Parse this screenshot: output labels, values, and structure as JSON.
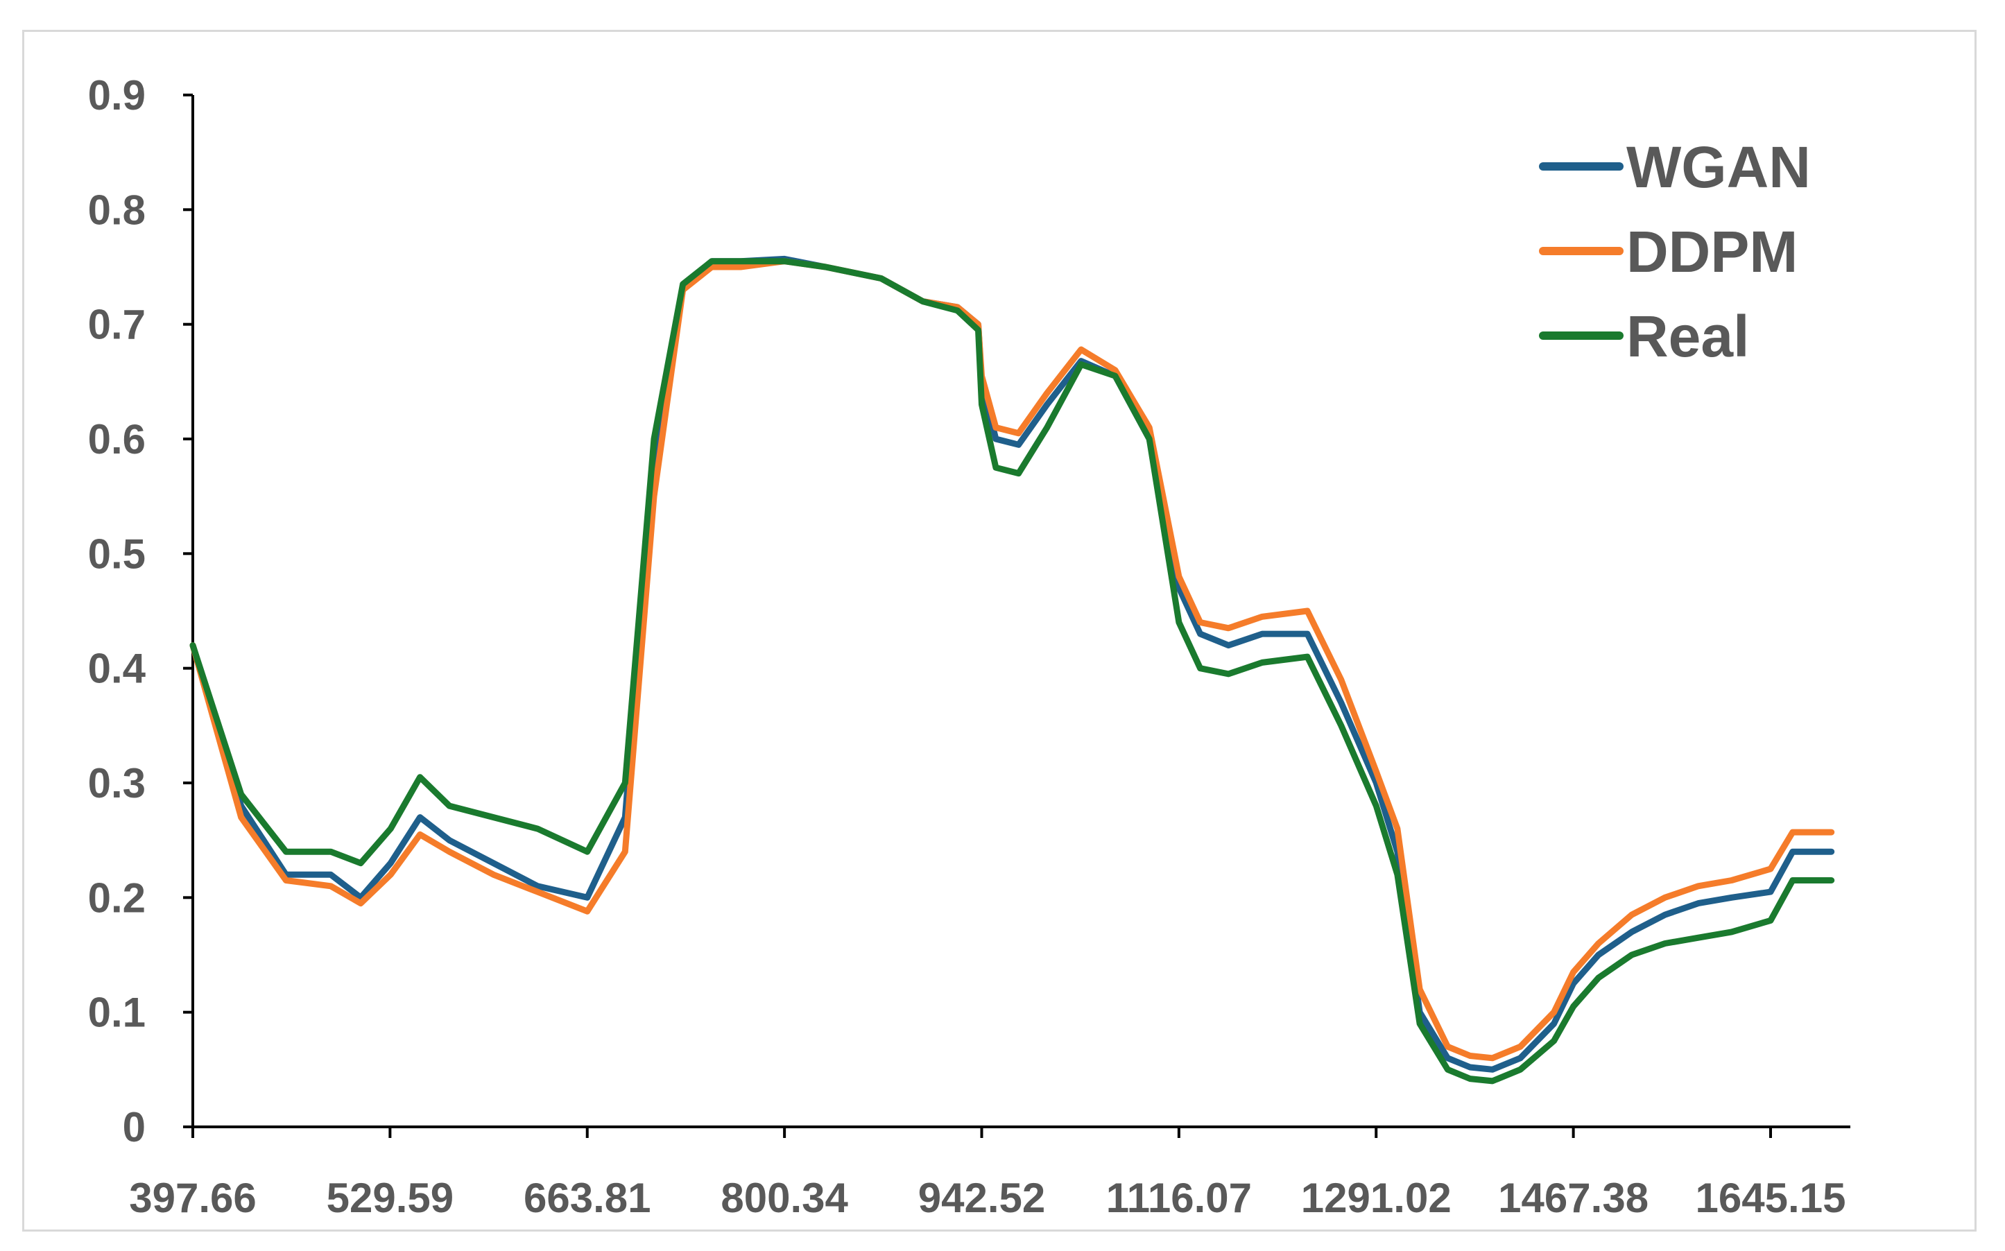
{
  "chart_data": {
    "type": "line",
    "title": "",
    "xlabel": "",
    "ylabel": "",
    "x_tick_labels": [
      "397.66",
      "529.59",
      "663.81",
      "800.34",
      "942.52",
      "1116.07",
      "1291.02",
      "1467.38",
      "1645.15"
    ],
    "y_ticks": [
      0,
      0.1,
      0.2,
      0.3,
      0.4,
      0.5,
      0.6,
      0.7,
      0.8,
      0.9
    ],
    "y_tick_labels": [
      "0",
      "0.1",
      "0.2",
      "0.3",
      "0.4",
      "0.5",
      "0.6",
      "0.7",
      "0.8",
      "0.9"
    ],
    "ylim": [
      0,
      0.9
    ],
    "grid": false,
    "legend_position": "top-right",
    "x": [
      397.66,
      430,
      460,
      490,
      510,
      530,
      550,
      570,
      600,
      630,
      663.81,
      690,
      710,
      730,
      750,
      770,
      800.34,
      830,
      870,
      900,
      925,
      940,
      942.52,
      955,
      975,
      1000,
      1030,
      1060,
      1090,
      1116.07,
      1135,
      1160,
      1190,
      1230,
      1260,
      1291.02,
      1310,
      1330,
      1355,
      1375,
      1395,
      1420,
      1450,
      1467.38,
      1490,
      1520,
      1550,
      1580,
      1610,
      1645.15,
      1665,
      1685,
      1700
    ],
    "series": [
      {
        "name": "WGAN",
        "color": "#1f5f8b",
        "values": [
          0.42,
          0.28,
          0.22,
          0.22,
          0.2,
          0.23,
          0.27,
          0.25,
          0.23,
          0.21,
          0.2,
          0.27,
          0.58,
          0.73,
          0.755,
          0.755,
          0.757,
          0.75,
          0.74,
          0.72,
          0.715,
          0.7,
          0.65,
          0.6,
          0.595,
          0.63,
          0.668,
          0.655,
          0.6,
          0.47,
          0.43,
          0.42,
          0.43,
          0.43,
          0.37,
          0.3,
          0.24,
          0.1,
          0.06,
          0.052,
          0.05,
          0.06,
          0.09,
          0.125,
          0.15,
          0.17,
          0.185,
          0.195,
          0.2,
          0.205,
          0.24,
          0.24,
          0.24
        ]
      },
      {
        "name": "DDPM",
        "color": "#f57c2a",
        "values": [
          0.42,
          0.27,
          0.215,
          0.21,
          0.195,
          0.22,
          0.255,
          0.24,
          0.22,
          0.205,
          0.188,
          0.24,
          0.55,
          0.73,
          0.75,
          0.75,
          0.755,
          0.75,
          0.74,
          0.72,
          0.715,
          0.7,
          0.655,
          0.61,
          0.605,
          0.64,
          0.678,
          0.66,
          0.61,
          0.48,
          0.44,
          0.435,
          0.445,
          0.45,
          0.39,
          0.31,
          0.26,
          0.12,
          0.07,
          0.062,
          0.06,
          0.07,
          0.1,
          0.135,
          0.16,
          0.185,
          0.2,
          0.21,
          0.215,
          0.225,
          0.257,
          0.257,
          0.257
        ]
      },
      {
        "name": "Real",
        "color": "#1a7a2e",
        "values": [
          0.42,
          0.29,
          0.24,
          0.24,
          0.23,
          0.26,
          0.305,
          0.28,
          0.27,
          0.26,
          0.24,
          0.3,
          0.6,
          0.735,
          0.755,
          0.755,
          0.755,
          0.75,
          0.74,
          0.72,
          0.712,
          0.695,
          0.63,
          0.575,
          0.57,
          0.61,
          0.665,
          0.655,
          0.6,
          0.44,
          0.4,
          0.395,
          0.405,
          0.41,
          0.35,
          0.28,
          0.22,
          0.09,
          0.05,
          0.042,
          0.04,
          0.05,
          0.075,
          0.105,
          0.13,
          0.15,
          0.16,
          0.165,
          0.17,
          0.18,
          0.215,
          0.215,
          0.215
        ]
      }
    ]
  }
}
